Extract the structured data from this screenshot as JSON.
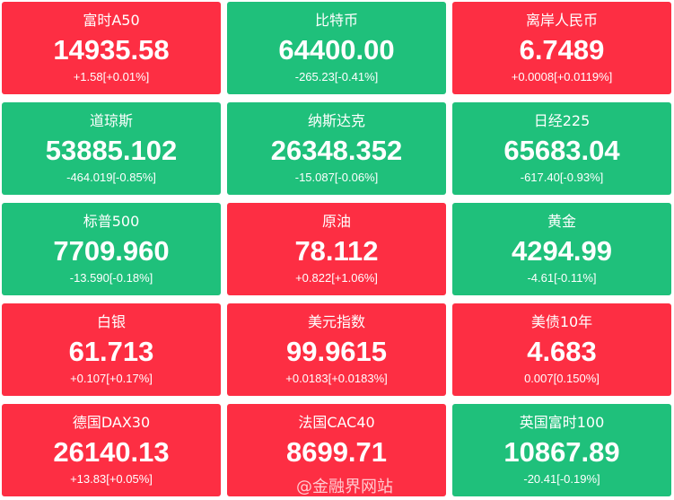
{
  "tiles": [
    {
      "name": "富时A50",
      "value": "14935.58",
      "change": "+1.58[+0.01%]",
      "color": "#fd2e43"
    },
    {
      "name": "比特币",
      "value": "64400.00",
      "change": "-265.23[-0.41%]",
      "color": "#1fc07b"
    },
    {
      "name": "离岸人民币",
      "value": "6.7489",
      "change": "+0.0008[+0.0119%]",
      "color": "#fd2e43"
    },
    {
      "name": "道琼斯",
      "value": "53885.102",
      "change": "-464.019[-0.85%]",
      "color": "#1fc07b"
    },
    {
      "name": "纳斯达克",
      "value": "26348.352",
      "change": "-15.087[-0.06%]",
      "color": "#1fc07b"
    },
    {
      "name": "日经225",
      "value": "65683.04",
      "change": "-617.40[-0.93%]",
      "color": "#1fc07b"
    },
    {
      "name": "标普500",
      "value": "7709.960",
      "change": "-13.590[-0.18%]",
      "color": "#1fc07b"
    },
    {
      "name": "原油",
      "value": "78.112",
      "change": "+0.822[+1.06%]",
      "color": "#fd2e43"
    },
    {
      "name": "黄金",
      "value": "4294.99",
      "change": "-4.61[-0.11%]",
      "color": "#1fc07b"
    },
    {
      "name": "白银",
      "value": "61.713",
      "change": "+0.107[+0.17%]",
      "color": "#fd2e43"
    },
    {
      "name": "美元指数",
      "value": "99.9615",
      "change": "+0.0183[+0.0183%]",
      "color": "#fd2e43"
    },
    {
      "name": "美债10年",
      "value": "4.683",
      "change": "0.007[0.150%]",
      "color": "#fd2e43"
    },
    {
      "name": "德国DAX30",
      "value": "26140.13",
      "change": "+13.83[+0.05%]",
      "color": "#fd2e43"
    },
    {
      "name": "法国CAC40",
      "value": "8699.71",
      "change": "",
      "color": "#fd2e43"
    },
    {
      "name": "英国富时100",
      "value": "10867.89",
      "change": "-20.41[-0.19%]",
      "color": "#1fc07b"
    }
  ],
  "watermark": "@金融界网站"
}
